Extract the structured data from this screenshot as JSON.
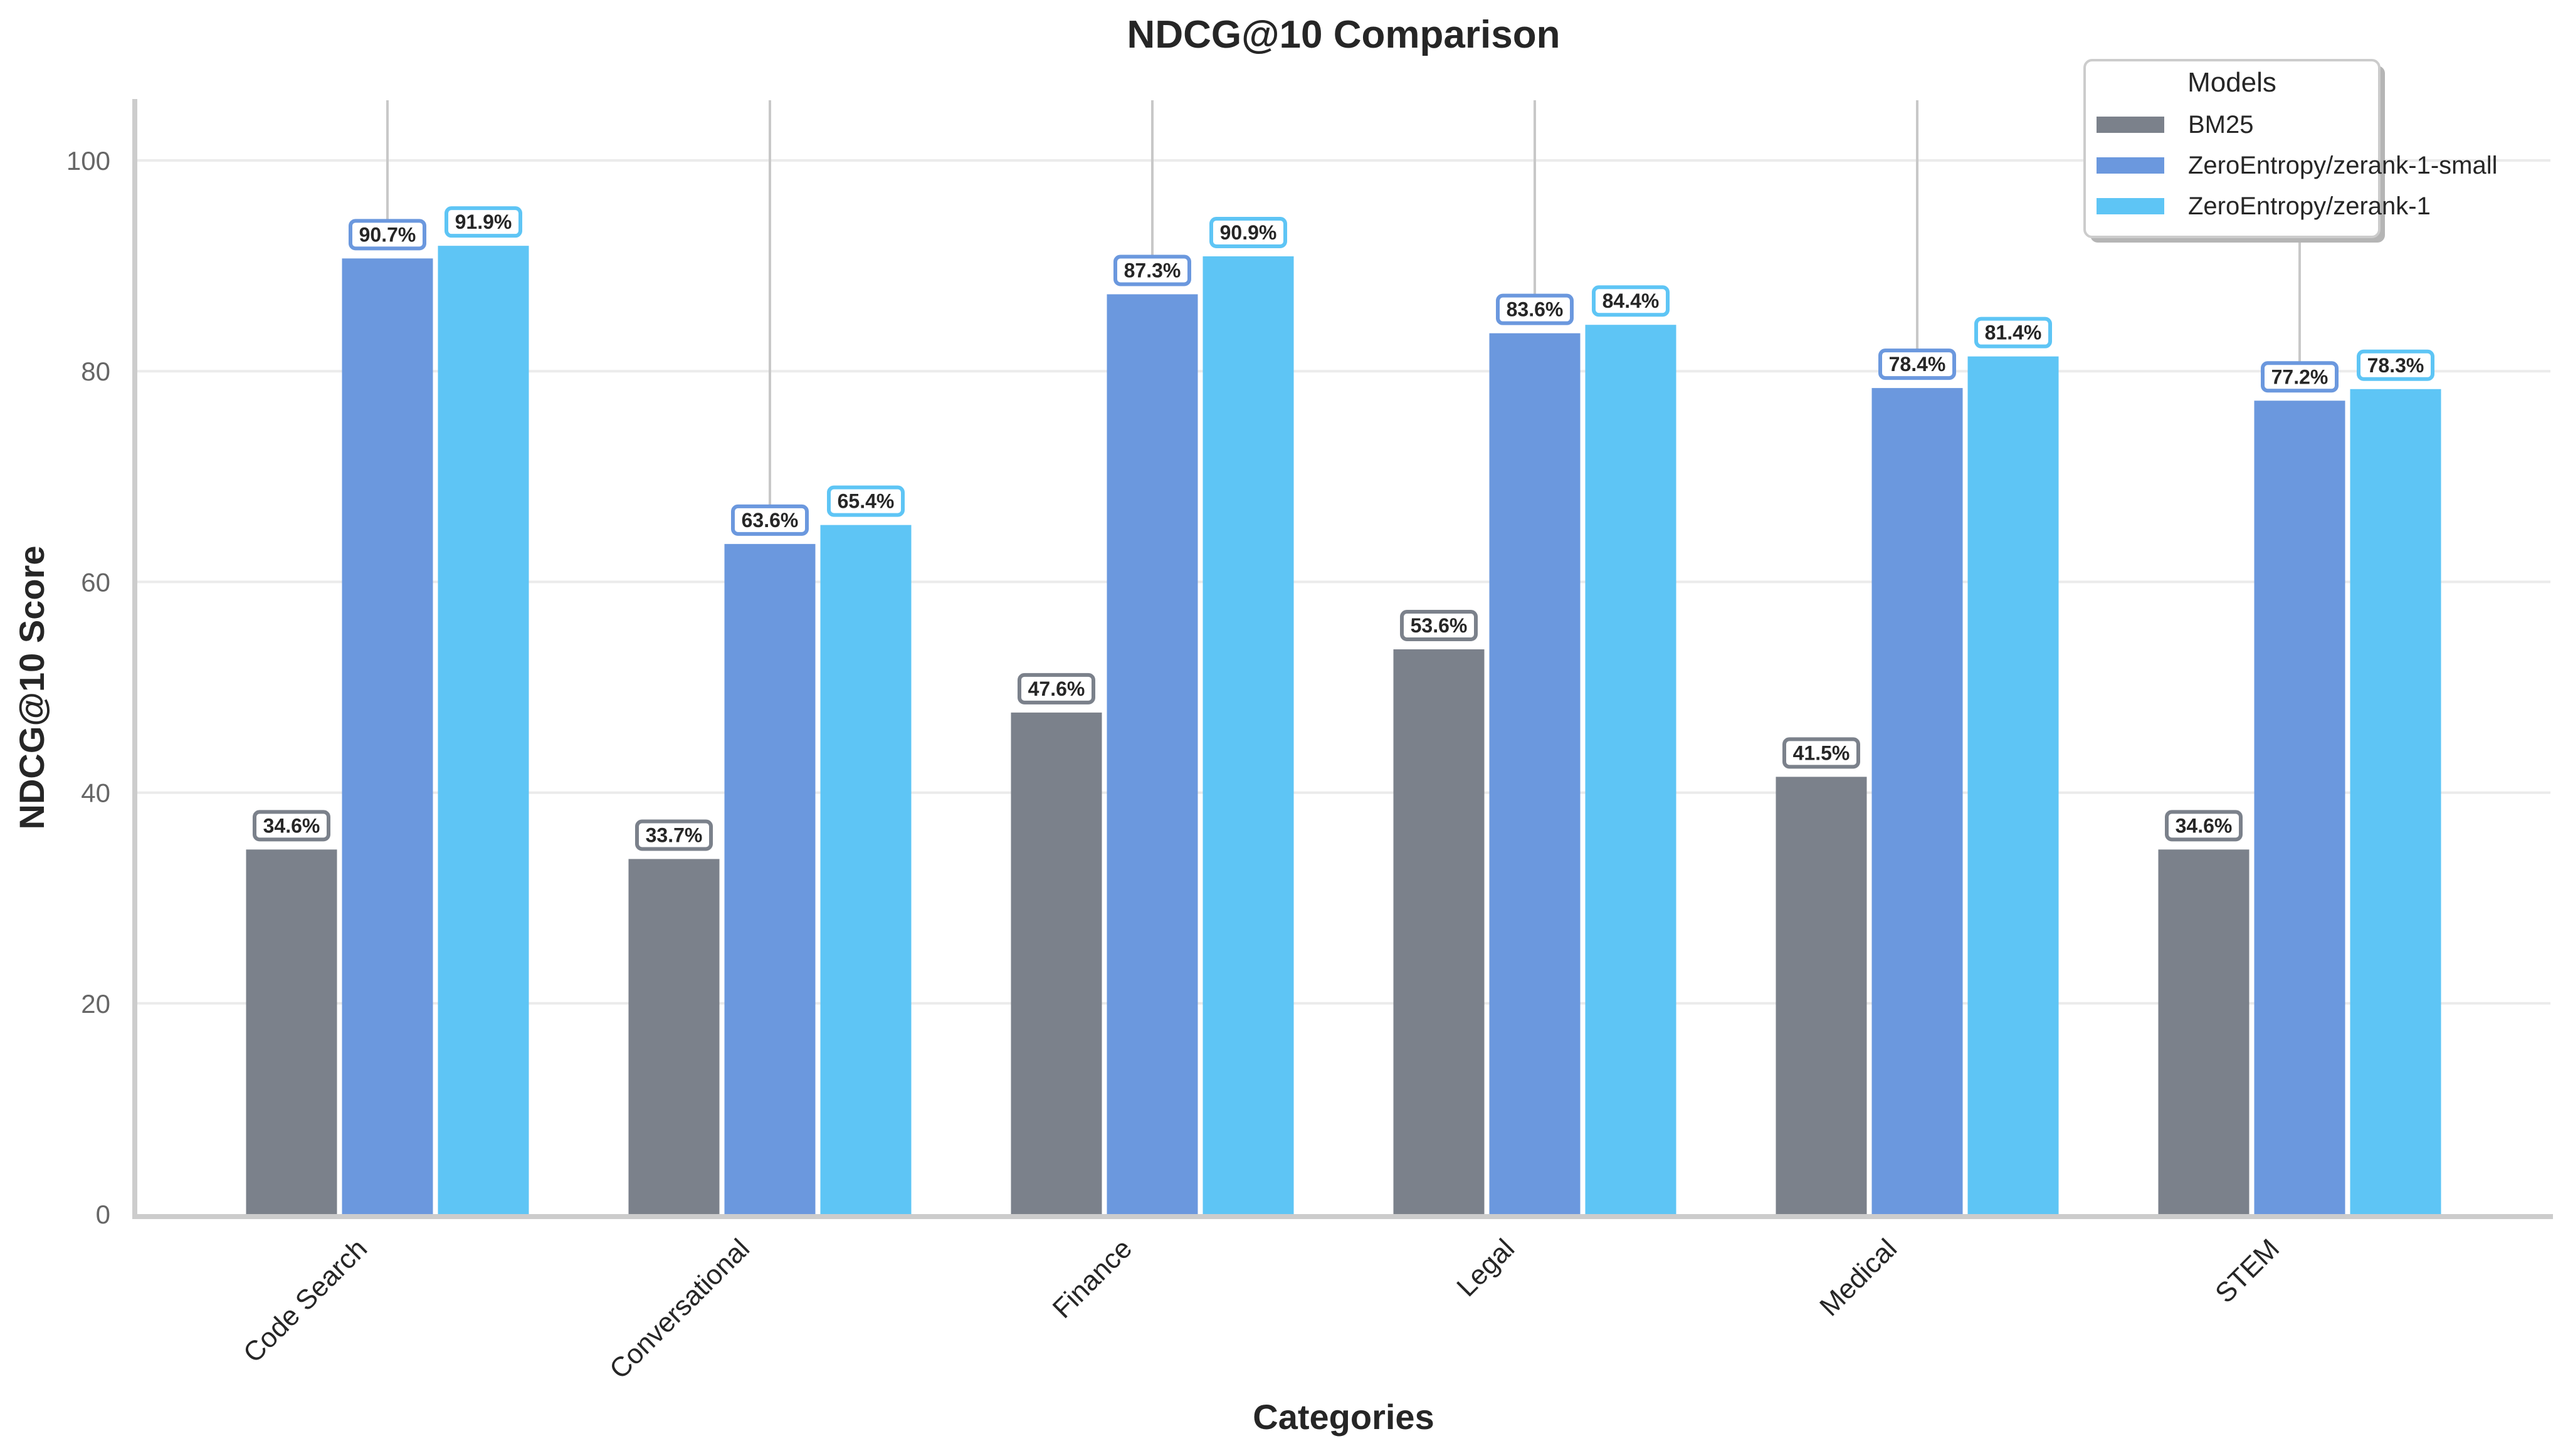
{
  "chart_data": {
    "type": "bar",
    "title": "NDCG@10 Comparison",
    "xlabel": "Categories",
    "ylabel": "NDCG@10 Score",
    "ylim": [
      0,
      105
    ],
    "yticks": [
      0,
      20,
      40,
      60,
      80,
      100
    ],
    "grid": true,
    "legend_position": "upper right",
    "legend_title": "Models",
    "categories": [
      "Code Search",
      "Conversational",
      "Finance",
      "Legal",
      "Medical",
      "STEM"
    ],
    "series": [
      {
        "name": "BM25",
        "color": "#7b818b",
        "values": [
          34.6,
          33.7,
          47.6,
          53.6,
          41.5,
          34.6
        ]
      },
      {
        "name": "ZeroEntropy/zerank-1-small",
        "color": "#6b98de",
        "values": [
          90.7,
          63.6,
          87.3,
          83.6,
          78.4,
          77.2
        ]
      },
      {
        "name": "ZeroEntropy/zerank-1",
        "color": "#5ec5f5",
        "values": [
          91.9,
          65.4,
          90.9,
          84.4,
          81.4,
          78.3
        ]
      }
    ],
    "value_label_format": "{v}%"
  }
}
